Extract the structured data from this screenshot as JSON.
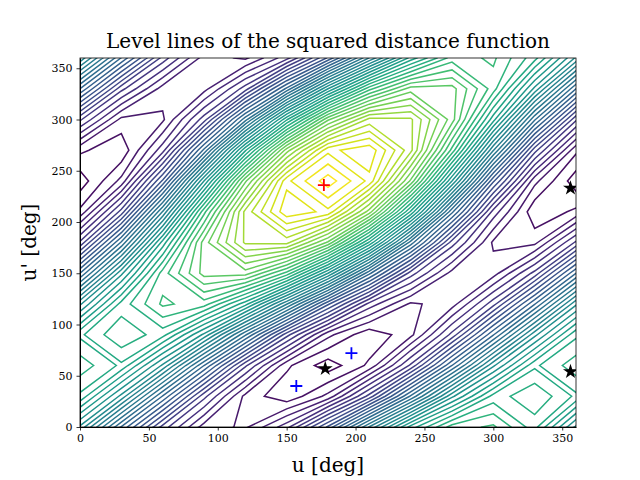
{
  "chart_data": {
    "type": "contour",
    "title": "Level lines of the squared distance function",
    "x_label": "u [deg]",
    "y_label": "u' [deg]",
    "xlim": [
      0,
      360
    ],
    "ylim": [
      0,
      360
    ],
    "xticks": [
      0,
      50,
      100,
      150,
      200,
      250,
      300,
      350
    ],
    "yticks": [
      0,
      50,
      100,
      150,
      200,
      250,
      300,
      350
    ],
    "color": "viridis",
    "x": [
      0,
      30,
      60,
      90,
      120,
      150,
      180,
      210,
      240,
      270,
      300,
      330,
      360
    ],
    "y": [
      0,
      30,
      60,
      90,
      120,
      150,
      180,
      210,
      240,
      270,
      300,
      330,
      360
    ],
    "z": [
      [
        11.4,
        7.96,
        4.8,
        2.76,
        2.4,
        3.8,
        6.6,
        10.04,
        13.2,
        15.24,
        15.6,
        14.2,
        11.4
      ],
      [
        13.89,
        11.34,
        7.96,
        4.67,
        2.34,
        1.6,
        2.65,
        5.2,
        8.58,
        11.87,
        14.2,
        14.94,
        13.89
      ],
      [
        14.8,
        13.89,
        11.4,
        8,
        4.6,
        2.11,
        1.2,
        2.11,
        4.6,
        8,
        11.4,
        13.89,
        14.8
      ],
      [
        13.89,
        14.94,
        14.2,
        11.87,
        8.58,
        5.2,
        2.65,
        1.6,
        2.34,
        4.67,
        7.96,
        11.34,
        13.89
      ],
      [
        11.4,
        14.2,
        15.6,
        15.24,
        13.2,
        10.04,
        6.6,
        3.8,
        2.4,
        2.76,
        4.8,
        7.96,
        11.4
      ],
      [
        8,
        11.87,
        15.24,
        17.2,
        17.24,
        15.33,
        12,
        8.13,
        4.76,
        2.8,
        2.76,
        4.67,
        8
      ],
      [
        4.6,
        8.58,
        13.2,
        17.24,
        19.6,
        19.66,
        17.4,
        13.42,
        8.8,
        4.76,
        2.4,
        2.34,
        4.6
      ],
      [
        2.11,
        5.2,
        10.04,
        15.33,
        19.66,
        21.86,
        21.35,
        18.26,
        13.42,
        8.13,
        3.8,
        1.6,
        2.11
      ],
      [
        1.2,
        2.65,
        6.6,
        12,
        17.4,
        21.35,
        22.8,
        21.35,
        17.4,
        12,
        6.6,
        2.65,
        1.2
      ],
      [
        2.11,
        1.6,
        3.8,
        8.13,
        13.42,
        18.26,
        21.35,
        21.86,
        19.66,
        15.33,
        10.04,
        5.2,
        2.11
      ],
      [
        4.6,
        2.34,
        2.4,
        4.76,
        8.8,
        13.42,
        17.4,
        19.66,
        19.6,
        17.24,
        13.2,
        8.58,
        4.6
      ],
      [
        8,
        4.67,
        2.76,
        2.8,
        4.76,
        8.13,
        12,
        15.33,
        17.24,
        17.2,
        15.24,
        11.87,
        8
      ],
      [
        11.4,
        7.96,
        4.8,
        2.76,
        2.4,
        3.8,
        6.6,
        10.04,
        13.2,
        15.24,
        15.6,
        14.2,
        11.4
      ]
    ],
    "levels": [
      1,
      1.5,
      2,
      2.5,
      3,
      3.5,
      4,
      4.5,
      5,
      5.5,
      6,
      6.5,
      7,
      7.5,
      8,
      8.5,
      9,
      9.5,
      10,
      10.5,
      11,
      11.5,
      12,
      12.5,
      13,
      13.5,
      14,
      14.5,
      15,
      15.5,
      16,
      16.5,
      17,
      17.5,
      18,
      18.5,
      19,
      19.5,
      20,
      20.5,
      21,
      21.5,
      22,
      22.5
    ],
    "series": [
      {
        "color": "#ff0000",
        "marker": "plus",
        "x": [
          177
        ],
        "values": [
          236
        ]
      },
      {
        "color": "#0000ff",
        "marker": "plus",
        "x": [
          157,
          197
        ],
        "values": [
          40,
          72
        ]
      },
      {
        "color": "#000000",
        "marker": "star",
        "x": [
          178,
          356,
          356
        ],
        "values": [
          57,
          233,
          54
        ]
      }
    ]
  }
}
